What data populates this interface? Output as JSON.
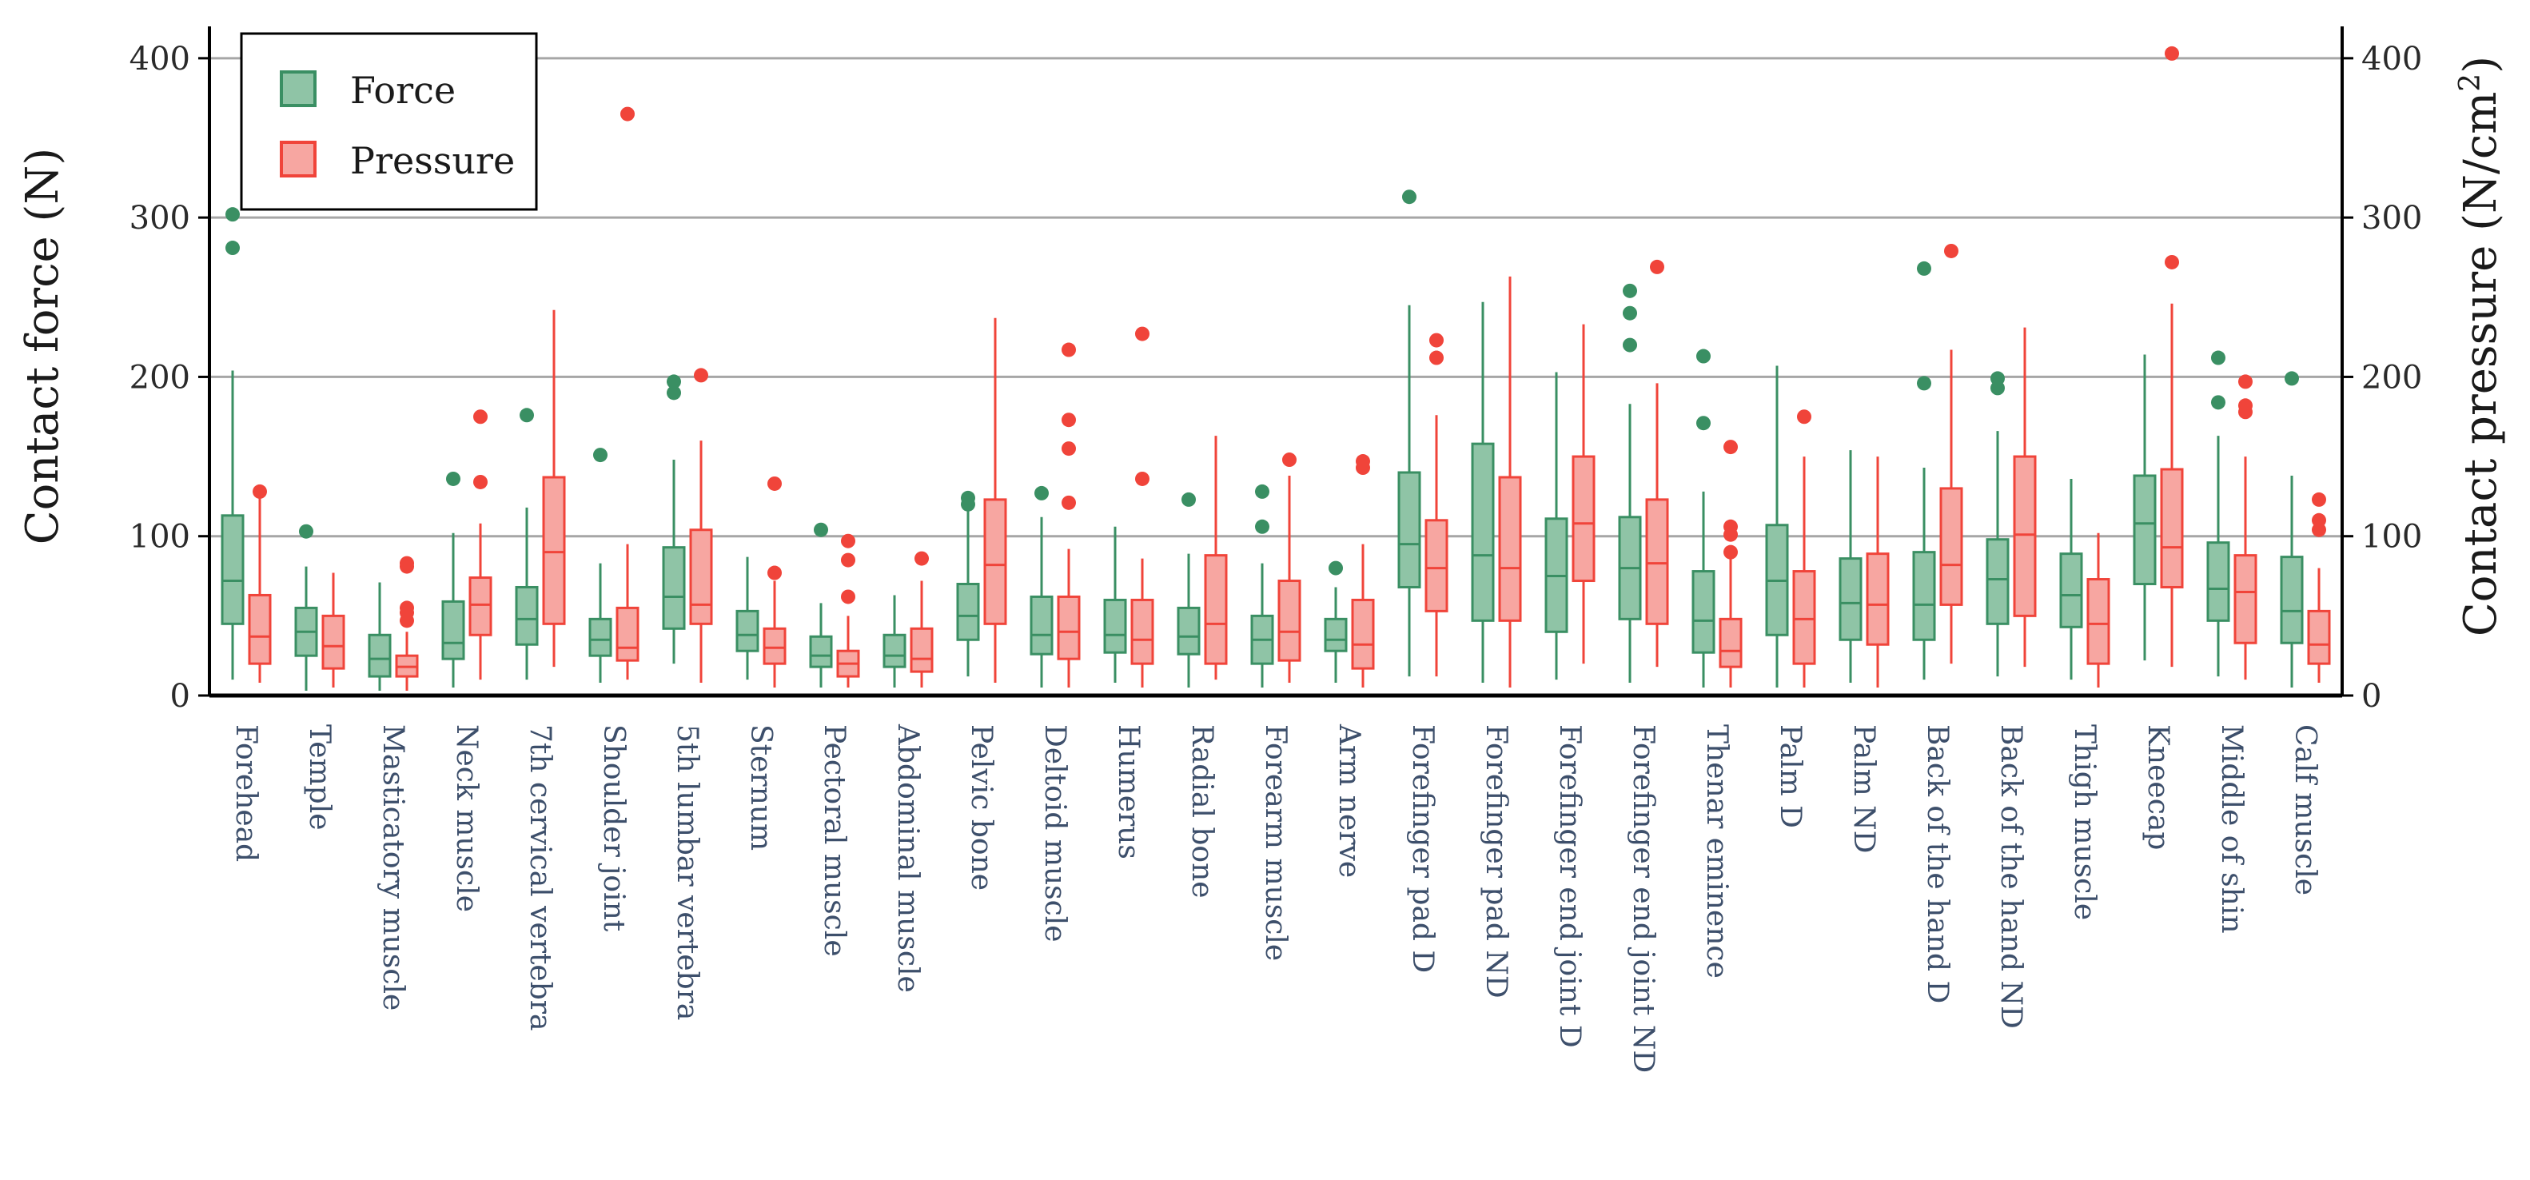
{
  "chart_data": {
    "type": "boxplot",
    "left_axis": {
      "label": "Contact force (N)",
      "ylim": [
        0,
        420
      ],
      "ticks": [
        0,
        100,
        200,
        300,
        400
      ]
    },
    "right_axis": {
      "label_main": "Contact pressure (N/cm",
      "label_sup": "2",
      "label_end": ")",
      "ylim": [
        0,
        420
      ],
      "ticks": [
        0,
        100,
        200,
        300,
        400
      ]
    },
    "grid": true,
    "legend": {
      "placement": "top-left",
      "entries": [
        {
          "name": "Force",
          "series": "force"
        },
        {
          "name": "Pressure",
          "series": "pressure"
        }
      ]
    },
    "colors": {
      "force_fill": "#8fc4a6",
      "force_stroke": "#3a8f63",
      "pressure_fill": "#f7a6a1",
      "pressure_stroke": "#f0443a",
      "grid": "#a6a6a6",
      "axis": "#000000"
    },
    "categories": [
      "Forehead",
      "Temple",
      "Masticatory muscle",
      "Neck muscle",
      "7th cervical vertebra",
      "Shoulder joint",
      "5th lumbar vertebra",
      "Sternum",
      "Pectoral muscle",
      "Abdominal muscle",
      "Pelvic bone",
      "Deltoid muscle",
      "Humerus",
      "Radial bone",
      "Forearm muscle",
      "Arm nerve",
      "Forefinger pad D",
      "Forefinger pad ND",
      "Forefinger end joint D",
      "Forefinger end joint ND",
      "Thenar eminence",
      "Palm D",
      "Palm ND",
      "Back of the hand D",
      "Back of the hand ND",
      "Thigh muscle",
      "Kneecap",
      "Middle of shin",
      "Calf muscle"
    ],
    "series": [
      {
        "name": "Force",
        "key": "force",
        "boxes": [
          {
            "min": 10,
            "q1": 45,
            "median": 72,
            "q3": 113,
            "max": 204,
            "outliers": [
              281,
              302
            ]
          },
          {
            "min": 3,
            "q1": 25,
            "median": 40,
            "q3": 55,
            "max": 81,
            "outliers": [
              103
            ]
          },
          {
            "min": 3,
            "q1": 12,
            "median": 23,
            "q3": 38,
            "max": 71,
            "outliers": []
          },
          {
            "min": 5,
            "q1": 23,
            "median": 33,
            "q3": 59,
            "max": 102,
            "outliers": [
              136
            ]
          },
          {
            "min": 10,
            "q1": 32,
            "median": 48,
            "q3": 68,
            "max": 118,
            "outliers": [
              176
            ]
          },
          {
            "min": 8,
            "q1": 25,
            "median": 35,
            "q3": 48,
            "max": 83,
            "outliers": [
              151
            ]
          },
          {
            "min": 20,
            "q1": 42,
            "median": 62,
            "q3": 93,
            "max": 148,
            "outliers": [
              190,
              197
            ]
          },
          {
            "min": 10,
            "q1": 28,
            "median": 38,
            "q3": 53,
            "max": 87,
            "outliers": []
          },
          {
            "min": 5,
            "q1": 18,
            "median": 25,
            "q3": 37,
            "max": 58,
            "outliers": [
              104
            ]
          },
          {
            "min": 5,
            "q1": 18,
            "median": 25,
            "q3": 38,
            "max": 63,
            "outliers": []
          },
          {
            "min": 12,
            "q1": 35,
            "median": 50,
            "q3": 70,
            "max": 120,
            "outliers": [
              120,
              124
            ]
          },
          {
            "min": 5,
            "q1": 26,
            "median": 38,
            "q3": 62,
            "max": 112,
            "outliers": [
              127
            ]
          },
          {
            "min": 8,
            "q1": 27,
            "median": 38,
            "q3": 60,
            "max": 106,
            "outliers": []
          },
          {
            "min": 5,
            "q1": 26,
            "median": 37,
            "q3": 55,
            "max": 89,
            "outliers": [
              123
            ]
          },
          {
            "min": 5,
            "q1": 20,
            "median": 35,
            "q3": 50,
            "max": 83,
            "outliers": [
              106,
              128
            ]
          },
          {
            "min": 8,
            "q1": 28,
            "median": 35,
            "q3": 48,
            "max": 68,
            "outliers": [
              80
            ]
          },
          {
            "min": 12,
            "q1": 68,
            "median": 95,
            "q3": 140,
            "max": 245,
            "outliers": [
              313
            ]
          },
          {
            "min": 8,
            "q1": 47,
            "median": 88,
            "q3": 158,
            "max": 247,
            "outliers": []
          },
          {
            "min": 10,
            "q1": 40,
            "median": 75,
            "q3": 111,
            "max": 203,
            "outliers": []
          },
          {
            "min": 8,
            "q1": 48,
            "median": 80,
            "q3": 112,
            "max": 183,
            "outliers": [
              220,
              240,
              254
            ]
          },
          {
            "min": 5,
            "q1": 27,
            "median": 47,
            "q3": 78,
            "max": 128,
            "outliers": [
              171,
              213
            ]
          },
          {
            "min": 5,
            "q1": 38,
            "median": 72,
            "q3": 107,
            "max": 207,
            "outliers": []
          },
          {
            "min": 8,
            "q1": 35,
            "median": 58,
            "q3": 86,
            "max": 154,
            "outliers": []
          },
          {
            "min": 10,
            "q1": 35,
            "median": 57,
            "q3": 90,
            "max": 143,
            "outliers": [
              196,
              268
            ]
          },
          {
            "min": 12,
            "q1": 45,
            "median": 73,
            "q3": 98,
            "max": 166,
            "outliers": [
              193,
              199
            ]
          },
          {
            "min": 10,
            "q1": 43,
            "median": 63,
            "q3": 89,
            "max": 136,
            "outliers": []
          },
          {
            "min": 22,
            "q1": 70,
            "median": 108,
            "q3": 138,
            "max": 214,
            "outliers": []
          },
          {
            "min": 12,
            "q1": 47,
            "median": 67,
            "q3": 96,
            "max": 163,
            "outliers": [
              184,
              212
            ]
          },
          {
            "min": 5,
            "q1": 33,
            "median": 53,
            "q3": 87,
            "max": 138,
            "outliers": [
              199
            ]
          }
        ]
      },
      {
        "name": "Pressure",
        "key": "pressure",
        "boxes": [
          {
            "min": 8,
            "q1": 20,
            "median": 37,
            "q3": 63,
            "max": 124,
            "outliers": [
              128
            ]
          },
          {
            "min": 5,
            "q1": 17,
            "median": 31,
            "q3": 50,
            "max": 77,
            "outliers": []
          },
          {
            "min": 3,
            "q1": 12,
            "median": 18,
            "q3": 25,
            "max": 40,
            "outliers": [
              47,
              52,
              55,
              81,
              83
            ]
          },
          {
            "min": 10,
            "q1": 38,
            "median": 57,
            "q3": 74,
            "max": 108,
            "outliers": [
              134,
              175
            ]
          },
          {
            "min": 18,
            "q1": 45,
            "median": 90,
            "q3": 137,
            "max": 242,
            "outliers": []
          },
          {
            "min": 10,
            "q1": 22,
            "median": 30,
            "q3": 55,
            "max": 95,
            "outliers": [
              365
            ]
          },
          {
            "min": 8,
            "q1": 45,
            "median": 57,
            "q3": 104,
            "max": 160,
            "outliers": [
              201
            ]
          },
          {
            "min": 5,
            "q1": 20,
            "median": 30,
            "q3": 42,
            "max": 72,
            "outliers": [
              77,
              133
            ]
          },
          {
            "min": 5,
            "q1": 12,
            "median": 20,
            "q3": 28,
            "max": 50,
            "outliers": [
              62,
              85,
              97
            ]
          },
          {
            "min": 5,
            "q1": 15,
            "median": 23,
            "q3": 42,
            "max": 72,
            "outliers": [
              86
            ]
          },
          {
            "min": 8,
            "q1": 45,
            "median": 82,
            "q3": 123,
            "max": 237,
            "outliers": []
          },
          {
            "min": 5,
            "q1": 23,
            "median": 40,
            "q3": 62,
            "max": 92,
            "outliers": [
              121,
              155,
              173,
              217
            ]
          },
          {
            "min": 5,
            "q1": 20,
            "median": 35,
            "q3": 60,
            "max": 86,
            "outliers": [
              136,
              227
            ]
          },
          {
            "min": 10,
            "q1": 20,
            "median": 45,
            "q3": 88,
            "max": 163,
            "outliers": []
          },
          {
            "min": 8,
            "q1": 22,
            "median": 40,
            "q3": 72,
            "max": 138,
            "outliers": [
              148
            ]
          },
          {
            "min": 5,
            "q1": 17,
            "median": 32,
            "q3": 60,
            "max": 95,
            "outliers": [
              143,
              147
            ]
          },
          {
            "min": 12,
            "q1": 53,
            "median": 80,
            "q3": 110,
            "max": 176,
            "outliers": [
              212,
              223
            ]
          },
          {
            "min": 5,
            "q1": 47,
            "median": 80,
            "q3": 137,
            "max": 263,
            "outliers": []
          },
          {
            "min": 20,
            "q1": 72,
            "median": 108,
            "q3": 150,
            "max": 233,
            "outliers": []
          },
          {
            "min": 18,
            "q1": 45,
            "median": 83,
            "q3": 123,
            "max": 196,
            "outliers": [
              269
            ]
          },
          {
            "min": 5,
            "q1": 18,
            "median": 28,
            "q3": 48,
            "max": 86,
            "outliers": [
              90,
              101,
              106,
              156
            ]
          },
          {
            "min": 5,
            "q1": 20,
            "median": 48,
            "q3": 78,
            "max": 150,
            "outliers": [
              175
            ]
          },
          {
            "min": 5,
            "q1": 32,
            "median": 57,
            "q3": 89,
            "max": 150,
            "outliers": []
          },
          {
            "min": 20,
            "q1": 57,
            "median": 82,
            "q3": 130,
            "max": 217,
            "outliers": [
              279
            ]
          },
          {
            "min": 18,
            "q1": 50,
            "median": 101,
            "q3": 150,
            "max": 231,
            "outliers": []
          },
          {
            "min": 5,
            "q1": 20,
            "median": 45,
            "q3": 73,
            "max": 102,
            "outliers": []
          },
          {
            "min": 18,
            "q1": 68,
            "median": 93,
            "q3": 142,
            "max": 246,
            "outliers": [
              272,
              403
            ]
          },
          {
            "min": 10,
            "q1": 33,
            "median": 65,
            "q3": 88,
            "max": 150,
            "outliers": [
              178,
              182,
              197
            ]
          },
          {
            "min": 8,
            "q1": 20,
            "median": 32,
            "q3": 53,
            "max": 80,
            "outliers": [
              104,
              110,
              123
            ]
          }
        ]
      }
    ]
  }
}
